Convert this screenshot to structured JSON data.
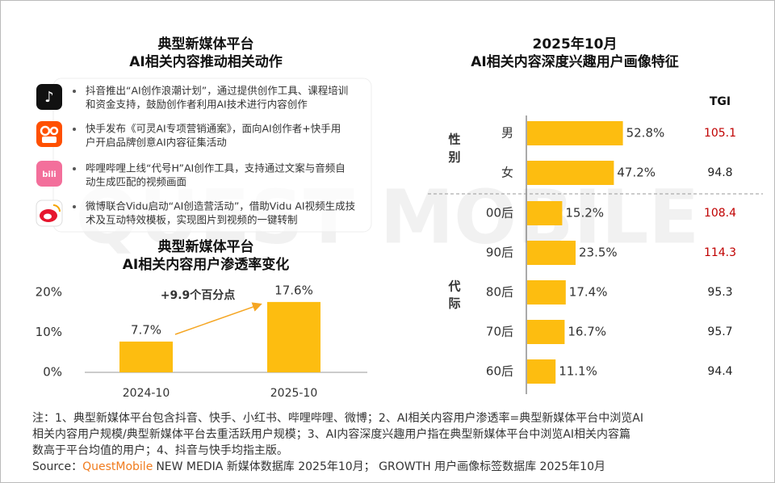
{
  "watermark": "QUEST MOBILE",
  "left_panel": {
    "title": [
      "典型新媒体平台",
      "AI相关内容推动相关动作"
    ],
    "items": [
      [
        "抖音推出“AI创作浪潮计划”，通过提供创作工具、课程培训",
        "和资金支持，鼓励创作者利用AI技术进行内容创作"
      ],
      [
        "快手发布《可灵AI专项营销通案》，面向AI创作者+快手用",
        "户开启品牌创意AI内容征集活动"
      ],
      [
        "哔哩哔哩上线“代号H”AI创作工具，支持通过文案与音频自",
        "动生成匹配的视频画面"
      ],
      [
        "微博联合Vidu启动“AI创造营活动”，借助Vidu AI视频生成技",
        "术及互动特效模板，实现图片到视频的一键转制"
      ]
    ]
  },
  "chart_data": [
    {
      "type": "bar",
      "title": [
        "典型新媒体平台",
        "AI相关内容用户渗透率变化"
      ],
      "categories": [
        "2024-10",
        "2025-10"
      ],
      "values": [
        7.7,
        17.6
      ],
      "value_labels": [
        "7.7%",
        "17.6%"
      ],
      "color": "#fdbd10",
      "ylim": [
        0,
        20
      ],
      "yticks": [
        {
          "value": 0,
          "label": "0%"
        },
        {
          "value": 10,
          "label": "10%"
        },
        {
          "value": 20,
          "label": "20%"
        }
      ],
      "annotation": "+9.9个百分点"
    },
    {
      "type": "hbar",
      "title": [
        "2025年10月",
        "AI相关内容深度兴趣用户画像特征"
      ],
      "color": "#fdbd10",
      "tgi_label": "TGI",
      "groups": [
        {
          "label": "性别",
          "categories": [
            "男",
            "女"
          ],
          "values": [
            52.8,
            47.2
          ],
          "value_labels": [
            "52.8%",
            "47.2%"
          ],
          "tgi": [
            105.1,
            94.8
          ],
          "tgi_colors": [
            "#c00000",
            "#222222"
          ]
        },
        {
          "label": "代际",
          "categories": [
            "00后",
            "90后",
            "80后",
            "70后",
            "60后"
          ],
          "values": [
            15.2,
            23.5,
            17.4,
            16.7,
            11.1
          ],
          "value_labels": [
            "15.2%",
            "23.5%",
            "17.4%",
            "16.7%",
            "11.1%"
          ],
          "tgi": [
            108.4,
            114.3,
            95.3,
            95.7,
            94.4
          ],
          "tgi_colors": [
            "#c00000",
            "#c00000",
            "#222222",
            "#222222",
            "#222222"
          ]
        }
      ]
    }
  ],
  "notes": [
    "注：1、典型新媒体平台包含抖音、快手、小红书、哔哩哔哩、微博；2、AI相关内容用户渗透率=典型新媒体平台中浏览AI",
    "相关内容用户规模/典型新媒体平台去重活跃用户规模；3、AI内容深度兴趣用户指在典型新媒体平台中浏览AI相关内容篇",
    "数高于平台均值的用户；4、抖音与快手均指主版。"
  ],
  "source": {
    "label": "Source：",
    "brand": "QuestMobile",
    "text": "NEW MEDIA 新媒体数据库 2025年10月； GROWTH 用户画像标签数据库 2025年10月"
  }
}
